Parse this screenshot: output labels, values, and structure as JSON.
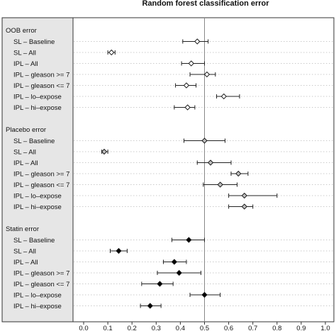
{
  "chart_data": {
    "type": "forest",
    "title": "Random forest classification error",
    "xlim": [
      0.0,
      1.0
    ],
    "x_ticks": [
      "0.0",
      "0.1",
      "0.2",
      "0.3",
      "0.4",
      "0.5",
      "0.6",
      "0.7",
      "0.8",
      "0.9",
      "1.0"
    ],
    "reference_line_x": 0.5,
    "groups": [
      {
        "name": "OOB error",
        "marker_fill": "#ffffff",
        "rows": [
          {
            "label": "SL – Baseline",
            "estimate": 0.47,
            "low": 0.41,
            "high": 0.515
          },
          {
            "label": "SL – All",
            "estimate": 0.115,
            "low": 0.1,
            "high": 0.13
          },
          {
            "label": "IPL – All",
            "estimate": 0.445,
            "low": 0.405,
            "high": 0.5
          },
          {
            "label": "IPL – gleason >= 7",
            "estimate": 0.51,
            "low": 0.44,
            "high": 0.545
          },
          {
            "label": "IPL – gleason <= 7",
            "estimate": 0.425,
            "low": 0.38,
            "high": 0.465
          },
          {
            "label": "IPL – lo–expose",
            "estimate": 0.58,
            "low": 0.55,
            "high": 0.645
          },
          {
            "label": "IPL – hi–expose",
            "estimate": 0.43,
            "low": 0.375,
            "high": 0.46
          }
        ]
      },
      {
        "name": "Placebo error",
        "marker_fill": "#bdbdbd",
        "rows": [
          {
            "label": "SL – Baseline",
            "estimate": 0.5,
            "low": 0.415,
            "high": 0.585
          },
          {
            "label": "SL – All",
            "estimate": 0.085,
            "low": 0.075,
            "high": 0.1
          },
          {
            "label": "IPL – All",
            "estimate": 0.525,
            "low": 0.47,
            "high": 0.61
          },
          {
            "label": "IPL – gleason >= 7",
            "estimate": 0.64,
            "low": 0.61,
            "high": 0.68
          },
          {
            "label": "IPL – gleason <= 7",
            "estimate": 0.565,
            "low": 0.495,
            "high": 0.635
          },
          {
            "label": "IPL – lo–expose",
            "estimate": 0.665,
            "low": 0.6,
            "high": 0.8
          },
          {
            "label": "IPL – hi–expose",
            "estimate": 0.665,
            "low": 0.6,
            "high": 0.7
          }
        ]
      },
      {
        "name": "Statin error",
        "marker_fill": "#000000",
        "rows": [
          {
            "label": "SL – Baseline",
            "estimate": 0.435,
            "low": 0.365,
            "high": 0.5
          },
          {
            "label": "SL – All",
            "estimate": 0.145,
            "low": 0.11,
            "high": 0.18
          },
          {
            "label": "IPL – All",
            "estimate": 0.375,
            "low": 0.33,
            "high": 0.425
          },
          {
            "label": "IPL – gleason >= 7",
            "estimate": 0.395,
            "low": 0.305,
            "high": 0.485
          },
          {
            "label": "IPL – gleason <= 7",
            "estimate": 0.315,
            "low": 0.24,
            "high": 0.37
          },
          {
            "label": "IPL – lo–expose",
            "estimate": 0.5,
            "low": 0.44,
            "high": 0.565
          },
          {
            "label": "IPL – hi–expose",
            "estimate": 0.275,
            "low": 0.235,
            "high": 0.32
          }
        ]
      }
    ]
  }
}
